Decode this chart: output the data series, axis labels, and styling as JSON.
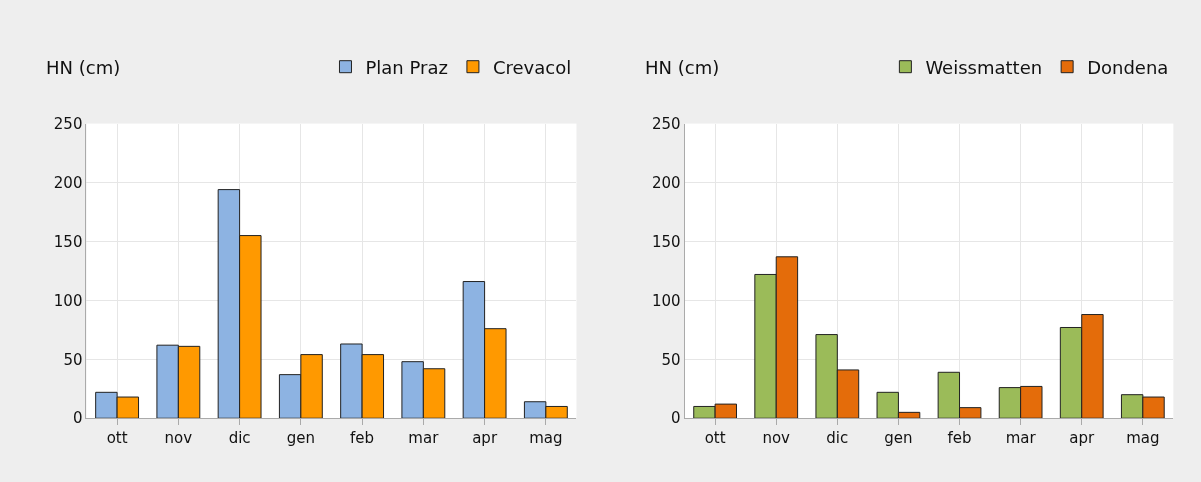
{
  "chart_data": [
    {
      "type": "bar",
      "ylabel": "HN (cm)",
      "categories": [
        "ott",
        "nov",
        "dic",
        "gen",
        "feb",
        "mar",
        "apr",
        "mag"
      ],
      "series": [
        {
          "name": "Plan Praz",
          "color": "#8db3e2",
          "values": [
            22,
            62,
            194,
            37,
            63,
            48,
            116,
            14
          ]
        },
        {
          "name": "Crevacol",
          "color": "#ff9900",
          "values": [
            18,
            61,
            155,
            54,
            54,
            42,
            76,
            10
          ]
        }
      ],
      "ylim": [
        0,
        250
      ],
      "yticks": [
        0,
        50,
        100,
        150,
        200,
        250
      ],
      "grid": true,
      "legend": "top right"
    },
    {
      "type": "bar",
      "ylabel": "HN (cm)",
      "categories": [
        "ott",
        "nov",
        "dic",
        "gen",
        "feb",
        "mar",
        "apr",
        "mag"
      ],
      "series": [
        {
          "name": "Weissmatten",
          "color": "#9bbb59",
          "values": [
            10,
            122,
            71,
            22,
            39,
            26,
            77,
            20
          ]
        },
        {
          "name": "Dondena",
          "color": "#e46c0a",
          "values": [
            12,
            137,
            41,
            5,
            9,
            27,
            88,
            18
          ]
        }
      ],
      "ylim": [
        0,
        250
      ],
      "yticks": [
        0,
        50,
        100,
        150,
        200,
        250
      ],
      "grid": true,
      "legend": "top right"
    }
  ]
}
